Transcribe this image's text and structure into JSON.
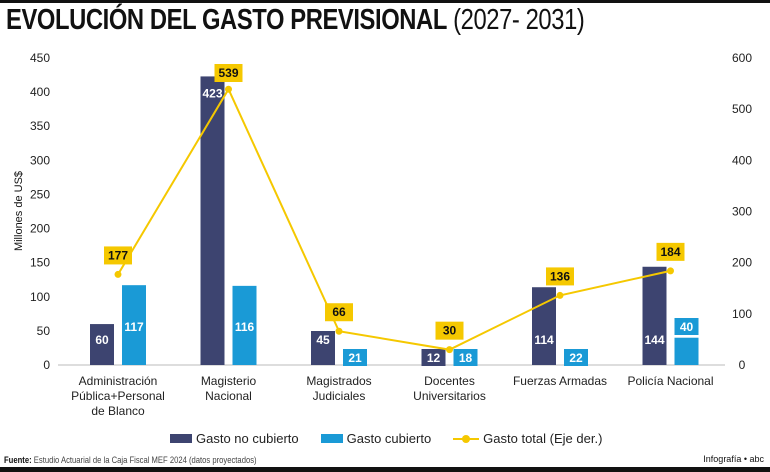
{
  "title": {
    "bold": "EVOLUCIÓN DEL GASTO PREVISIONAL",
    "light": "(2027- 2031)"
  },
  "chart_data": {
    "type": "bar+line",
    "title": "EVOLUCIÓN DEL GASTO PREVISIONAL (2027- 2031)",
    "categories": [
      "Administración Pública+Personal de Blanco",
      "Magisterio Nacional",
      "Magistrados Judiciales",
      "Docentes Universitarios",
      "Fuerzas Armadas",
      "Policía Nacional"
    ],
    "category_lines": [
      [
        "Administración",
        "Pública+Personal",
        "de Blanco"
      ],
      [
        "Magisterio",
        "Nacional"
      ],
      [
        "Magistrados",
        "Judiciales"
      ],
      [
        "Docentes",
        "Universitarios"
      ],
      [
        "Fuerzas Armadas"
      ],
      [
        "Policía Nacional"
      ]
    ],
    "ylabel": "Millones de US$",
    "ylim": [
      0,
      450
    ],
    "yticks": [
      0,
      50,
      100,
      150,
      200,
      250,
      300,
      350,
      400,
      450
    ],
    "y2lim": [
      0,
      600
    ],
    "y2ticks": [
      0,
      100,
      200,
      300,
      400,
      500,
      600
    ],
    "grid": false,
    "legend_position": "bottom",
    "series": [
      {
        "name": "Gasto no cubierto",
        "type": "bar",
        "axis": "left",
        "color": "#3d4470",
        "values": [
          60,
          423,
          45,
          12,
          114,
          144
        ]
      },
      {
        "name": "Gasto cubierto",
        "type": "bar",
        "axis": "left",
        "color": "#1a9ad6",
        "values": [
          117,
          116,
          21,
          18,
          22,
          40
        ]
      },
      {
        "name": "Gasto total (Eje der.)",
        "type": "line",
        "axis": "right",
        "color": "#f5c800",
        "values": [
          177,
          539,
          66,
          30,
          136,
          184
        ]
      }
    ]
  },
  "footer": {
    "source_label": "Fuente:",
    "source_text": "Estudio Actuarial de la Caja Fiscal MEF 2024 (datos proyectados)",
    "credit": "Infografía • abc"
  }
}
